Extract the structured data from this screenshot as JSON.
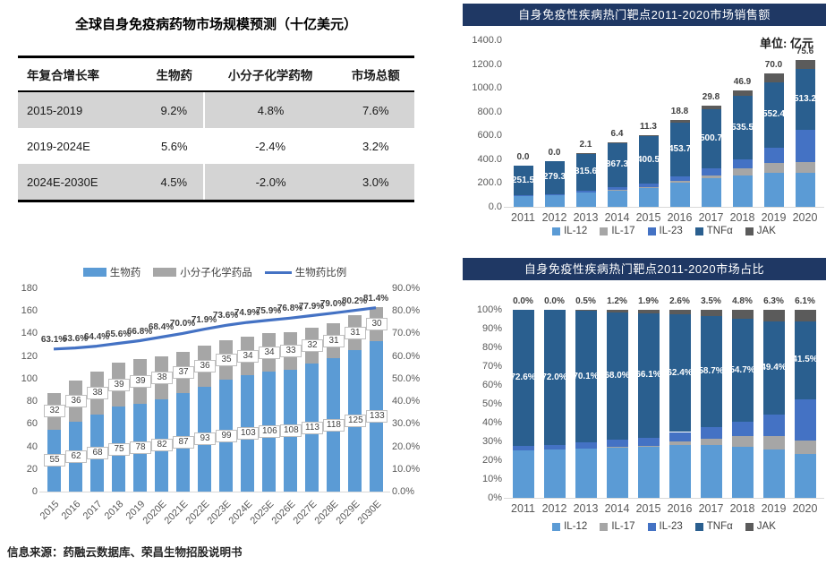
{
  "page": {
    "source_note": "信息来源：药融云数据库、荣昌生物招股说明书"
  },
  "table_section": {
    "title": "全球自身免疫病药物市场规模预测（十亿美元）",
    "headers": [
      "年复合增长率",
      "生物药",
      "小分子化学药物",
      "市场总额"
    ],
    "rows": [
      [
        "2015-2019",
        "9.2%",
        "4.8%",
        "7.6%"
      ],
      [
        "2019-2024E",
        "5.6%",
        "-2.4%",
        "3.2%"
      ],
      [
        "2024E-2030E",
        "4.5%",
        "-2.0%",
        "3.0%"
      ]
    ]
  },
  "chart_data": [
    {
      "id": "market-forecast",
      "type": "bar+line",
      "title": "",
      "categories": [
        "2015",
        "2016",
        "2017",
        "2018",
        "2019",
        "2020E",
        "2021E",
        "2022E",
        "2023E",
        "2024E",
        "2025E",
        "2026E",
        "2027E",
        "2028E",
        "2029E",
        "2030E"
      ],
      "series": [
        {
          "name": "生物药",
          "type": "bar",
          "color": "#5b9bd5",
          "values": [
            55,
            62,
            68,
            75,
            78,
            82,
            87,
            93,
            99,
            103,
            106,
            108,
            113,
            118,
            125,
            133
          ]
        },
        {
          "name": "小分子化学药品",
          "type": "bar",
          "color": "#a6a6a6",
          "values": [
            32,
            36,
            38,
            39,
            39,
            38,
            37,
            36,
            35,
            34,
            34,
            33,
            32,
            31,
            31,
            30
          ]
        },
        {
          "name": "生物药比例",
          "type": "line",
          "color": "#4472c4",
          "axis": "right",
          "values": [
            63.1,
            63.6,
            64.4,
            65.6,
            66.8,
            68.4,
            70.0,
            71.9,
            73.6,
            74.9,
            75.9,
            76.8,
            77.9,
            79.0,
            80.2,
            81.4
          ],
          "labels": [
            "63.1%",
            "63.6%",
            "64.4%",
            "65.6%",
            "66.8%",
            "68.4%",
            "70.0%",
            "71.9%",
            "73.6%",
            "74.9%",
            "75.9%",
            "76.8%",
            "77.9%",
            "79.0%",
            "80.2%",
            "81.4%"
          ]
        }
      ],
      "left_axis": {
        "min": 0,
        "max": 180,
        "ticks": [
          "0",
          "20",
          "40",
          "60",
          "80",
          "100",
          "120",
          "140",
          "160",
          "180"
        ]
      },
      "right_axis": {
        "min": 0,
        "max": 90,
        "ticks": [
          "0.0%",
          "10.0%",
          "20.0%",
          "30.0%",
          "40.0%",
          "50.0%",
          "60.0%",
          "70.0%",
          "80.0%",
          "90.0%"
        ]
      },
      "grid": false,
      "legend_position": "top"
    },
    {
      "id": "target-sales",
      "type": "stacked-bar",
      "title": "自身免疫性疾病热门靶点2011-2020市场销售额",
      "unit_label": "单位: 亿元",
      "categories": [
        "2011",
        "2012",
        "2013",
        "2014",
        "2015",
        "2016",
        "2017",
        "2018",
        "2019",
        "2020"
      ],
      "series": [
        {
          "name": "IL-12",
          "color": "#5b9bd5",
          "values": [
            88,
            99,
            119,
            145,
            165,
            204,
            239,
            264,
            285,
            288
          ]
        },
        {
          "name": "IL-17",
          "color": "#a6a6a6",
          "values": [
            0,
            0,
            0,
            1,
            3,
            13,
            28,
            57,
            82,
            87
          ]
        },
        {
          "name": "IL-23",
          "color": "#4472c4",
          "values": [
            7,
            9,
            14,
            21,
            26,
            38,
            55,
            75,
            129,
            273
          ]
        },
        {
          "name": "TNFα",
          "color": "#2a5f8f",
          "inside_labels": [
            "251.5",
            "279.3",
            "315.6",
            "367.3",
            "400.5",
            "453.7",
            "500.7",
            "535.5",
            "552.4",
            "513.2"
          ],
          "values": [
            251.5,
            279.3,
            315.6,
            367.3,
            400.5,
            453.7,
            500.7,
            535.5,
            552.4,
            513.2
          ]
        },
        {
          "name": "JAK",
          "color": "#5b5b5b",
          "values": [
            0,
            0,
            2.1,
            6.4,
            11.3,
            18.8,
            29.8,
            46.9,
            70.0,
            75.6
          ]
        }
      ],
      "top_labels": [
        "0.0",
        "0.0",
        "2.1",
        "6.4",
        "11.3",
        "18.8",
        "29.8",
        "46.9",
        "70.0",
        "75.6"
      ],
      "y_axis": {
        "min": 0,
        "max": 1400,
        "ticks": [
          "0.0",
          "200.0",
          "400.0",
          "600.0",
          "800.0",
          "1000.0",
          "1200.0",
          "1400.0"
        ]
      },
      "grid": false,
      "legend_position": "bottom"
    },
    {
      "id": "target-share",
      "type": "stacked-bar-100",
      "title": "自身免疫性疾病热门靶点2011-2020市场占比",
      "categories": [
        "2011",
        "2012",
        "2013",
        "2014",
        "2015",
        "2016",
        "2017",
        "2018",
        "2019",
        "2020"
      ],
      "series": [
        {
          "name": "IL-12",
          "color": "#5b9bd5",
          "values": [
            25.4,
            25.6,
            26.4,
            26.8,
            27.2,
            28.0,
            28.0,
            27.0,
            25.5,
            23.3
          ]
        },
        {
          "name": "IL-17",
          "color": "#a6a6a6",
          "values": [
            0.0,
            0.0,
            0.0,
            0.2,
            0.5,
            1.8,
            3.3,
            5.8,
            7.3,
            7.0
          ]
        },
        {
          "name": "IL-23",
          "color": "#4472c4",
          "values": [
            2.0,
            2.4,
            3.0,
            3.8,
            4.3,
            5.2,
            6.5,
            7.7,
            11.5,
            22.1
          ]
        },
        {
          "name": "TNFα",
          "color": "#2a5f8f",
          "inside_labels": [
            "72.6%",
            "72.0%",
            "70.1%",
            "68.0%",
            "66.1%",
            "62.4%",
            "58.7%",
            "54.7%",
            "49.4%",
            "41.5%"
          ],
          "values": [
            72.6,
            72.0,
            70.1,
            68.0,
            66.1,
            62.4,
            58.7,
            54.7,
            49.4,
            41.5
          ]
        },
        {
          "name": "JAK",
          "color": "#5b5b5b",
          "values": [
            0.0,
            0.0,
            0.5,
            1.2,
            1.9,
            2.6,
            3.5,
            4.8,
            6.3,
            6.1
          ]
        }
      ],
      "top_labels": [
        "0.0%",
        "0.0%",
        "0.5%",
        "1.2%",
        "1.9%",
        "2.6%",
        "3.5%",
        "4.8%",
        "6.3%",
        "6.1%"
      ],
      "y_axis": {
        "min": 0,
        "max": 100,
        "ticks": [
          "0%",
          "10%",
          "20%",
          "30%",
          "40%",
          "50%",
          "60%",
          "70%",
          "80%",
          "90%",
          "100%"
        ]
      },
      "grid": false,
      "legend_position": "bottom"
    }
  ]
}
